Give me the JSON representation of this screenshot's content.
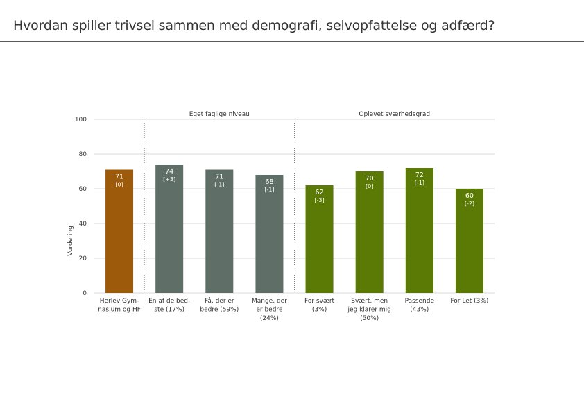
{
  "slide": {
    "title": "Hvordan spiller trivsel sammen med demografi, selvopfattelse og adfærd?"
  },
  "chart_data": {
    "type": "bar",
    "title": "",
    "ylabel": "Vurdering",
    "xlabel": "",
    "ylim": [
      0,
      100
    ],
    "yticks": [
      0,
      20,
      40,
      60,
      80,
      100
    ],
    "grid": true,
    "colors": {
      "school": "#9c5a0a",
      "own_level": "#5f6f67",
      "difficulty": "#5a7a05",
      "grid": "#d9d9d9",
      "divider": "#7f7f7f"
    },
    "groups": [
      {
        "name": "",
        "range": [
          0,
          0
        ]
      },
      {
        "name": "Eget faglige niveau",
        "range": [
          1,
          3
        ]
      },
      {
        "name": "Oplevet sværhedsgrad",
        "range": [
          4,
          7
        ]
      }
    ],
    "categories": [
      [
        "Herlev Gym-",
        "nasium og HF"
      ],
      [
        "En af de bed-",
        "ste (17%)"
      ],
      [
        "Få, der er",
        "bedre (59%)"
      ],
      [
        "Mange, der",
        "er bedre",
        "(24%)"
      ],
      [
        "For svært",
        "(3%)"
      ],
      [
        "Svært, men",
        "jeg klarer mig",
        "(50%)"
      ],
      [
        "Passende",
        "(43%)"
      ],
      [
        "For Let (3%)"
      ]
    ],
    "values": [
      71,
      74,
      71,
      68,
      62,
      70,
      72,
      60
    ],
    "value_labels": [
      "71",
      "74",
      "71",
      "68",
      "62",
      "70",
      "72",
      "60"
    ],
    "diff_labels": [
      "[0]",
      "[+3]",
      "[-1]",
      "[-1]",
      "[-3]",
      "[0]",
      "[-1]",
      "[-2]"
    ],
    "series_colors": [
      "school",
      "own_level",
      "own_level",
      "own_level",
      "difficulty",
      "difficulty",
      "difficulty",
      "difficulty"
    ]
  }
}
